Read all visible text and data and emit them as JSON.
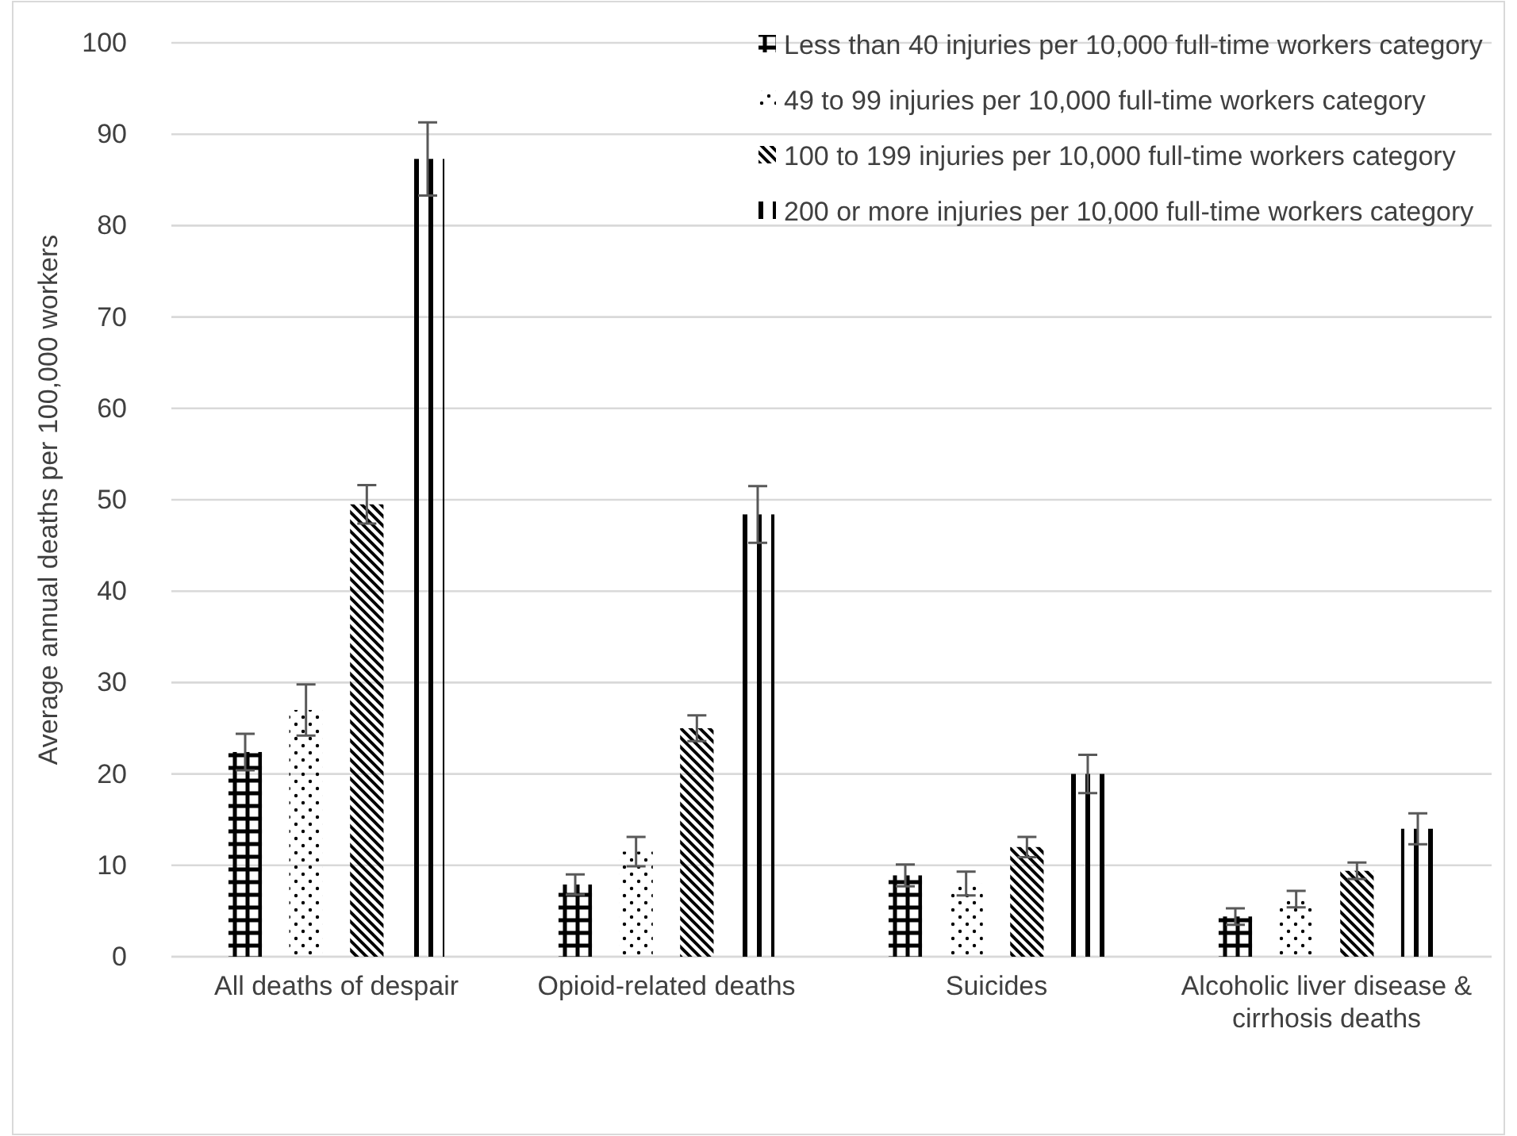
{
  "chart_data": {
    "type": "bar",
    "ylabel": "Average annual deaths per 100,000 workers",
    "categories": [
      "All deaths of despair",
      "Opioid-related deaths",
      "Suicides",
      "Alcoholic liver disease & cirrhosis deaths"
    ],
    "series": [
      {
        "name": "Less than 40 injuries per 10,000 full-time workers category",
        "color": "#000000",
        "values": [
          22.4,
          7.9,
          8.9,
          4.4
        ],
        "errors": [
          2,
          1.1,
          1.2,
          0.9
        ]
      },
      {
        "name": "49 to 99 injuries per 10,000 full-time workers category",
        "color": "#000000",
        "values": [
          27,
          11.5,
          8,
          6.3
        ],
        "errors": [
          2.8,
          1.6,
          1.3,
          0.9
        ]
      },
      {
        "name": "100 to 199 injuries per 10,000 full-time workers category",
        "color": "#000000",
        "values": [
          49.5,
          25,
          12,
          9.4
        ],
        "errors": [
          2.1,
          1.4,
          1.1,
          0.9
        ]
      },
      {
        "name": "200 or more injuries per 10,000 full-time workers category",
        "color": "#000000",
        "values": [
          87.3,
          48.4,
          20,
          14
        ],
        "errors": [
          4,
          3.1,
          2.1,
          1.7
        ]
      }
    ],
    "ylim": [
      0,
      100
    ],
    "yticks": [
      0,
      10,
      20,
      30,
      40,
      50,
      60,
      70,
      80,
      90,
      100
    ],
    "grid": "y",
    "legend": "top right"
  }
}
